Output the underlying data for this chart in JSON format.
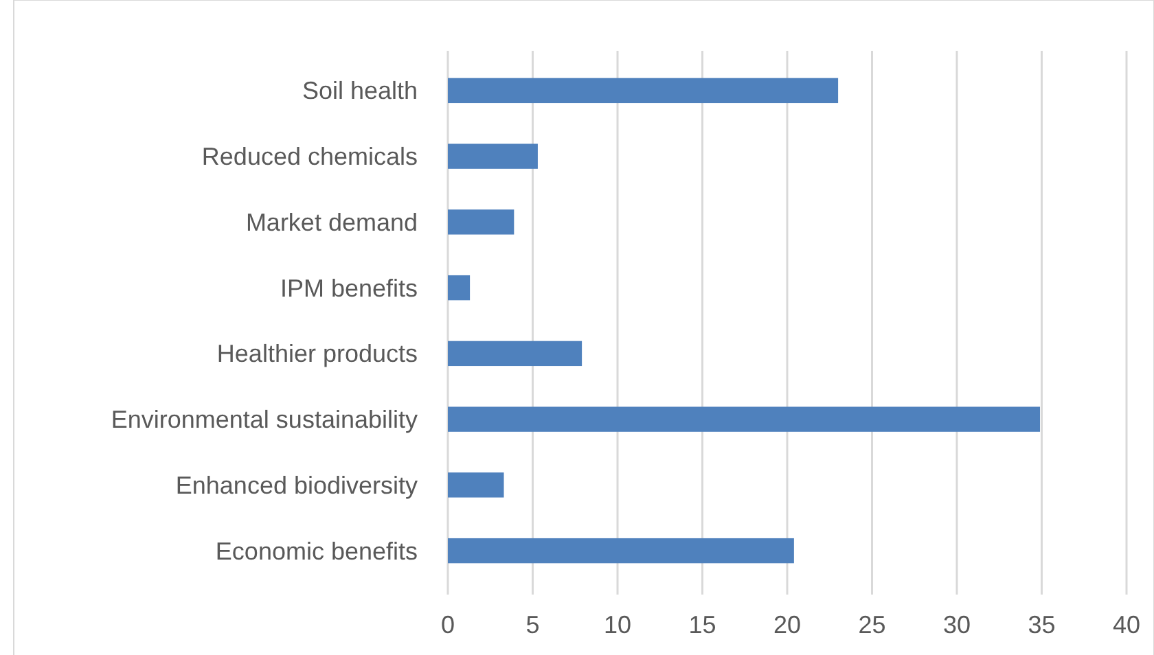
{
  "chart_data": {
    "type": "bar",
    "orientation": "horizontal",
    "categories": [
      "Soil health",
      "Reduced chemicals",
      "Market demand",
      "IPM benefits",
      "Healthier products",
      "Environmental sustainability",
      "Enhanced biodiversity",
      "Economic benefits"
    ],
    "values": [
      23,
      5.3,
      3.9,
      1.3,
      7.9,
      34.9,
      3.3,
      20.4
    ],
    "color": "#4f81bd",
    "xlim": [
      0,
      40
    ],
    "xticks": [
      0,
      5,
      10,
      15,
      20,
      25,
      30,
      35,
      40
    ],
    "grid": "x"
  }
}
